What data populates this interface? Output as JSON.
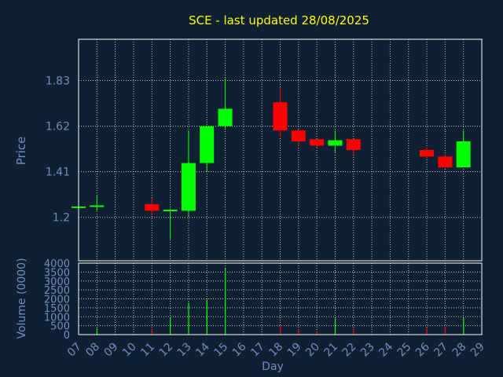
{
  "title": "SCE - last updated 28/08/2025",
  "colors": {
    "background": "#0f2033",
    "title": "#ffff00",
    "axis_text": "#6f8fbf",
    "grid": "#ffffff",
    "up": "#00ff00",
    "down": "#ff0000"
  },
  "chart_data": [
    {
      "type": "candlestick",
      "ylabel": "Price",
      "ylim": [
        1.0,
        2.02
      ],
      "yticks": [
        "1.2",
        "1.41",
        "1.62",
        "1.83"
      ],
      "ytick_values": [
        1.2,
        1.41,
        1.62,
        1.83
      ],
      "grid": true,
      "candles": [
        {
          "day": 7,
          "open": 1.25,
          "high": 1.25,
          "low": 1.25,
          "close": 1.25
        },
        {
          "day": 8,
          "open": 1.25,
          "high": 1.3,
          "low": 1.23,
          "close": 1.255
        },
        {
          "day": 11,
          "open": 1.26,
          "high": 1.29,
          "low": 1.21,
          "close": 1.23
        },
        {
          "day": 12,
          "open": 1.23,
          "high": 1.24,
          "low": 1.1,
          "close": 1.235
        },
        {
          "day": 13,
          "open": 1.23,
          "high": 1.6,
          "low": 1.2,
          "close": 1.45
        },
        {
          "day": 14,
          "open": 1.45,
          "high": 1.62,
          "low": 1.41,
          "close": 1.62
        },
        {
          "day": 15,
          "open": 1.62,
          "high": 1.84,
          "low": 1.61,
          "close": 1.7
        },
        {
          "day": 18,
          "open": 1.73,
          "high": 1.8,
          "low": 1.57,
          "close": 1.6
        },
        {
          "day": 19,
          "open": 1.6,
          "high": 1.6,
          "low": 1.53,
          "close": 1.55
        },
        {
          "day": 20,
          "open": 1.56,
          "high": 1.56,
          "low": 1.52,
          "close": 1.53
        },
        {
          "day": 21,
          "open": 1.53,
          "high": 1.6,
          "low": 1.5,
          "close": 1.555
        },
        {
          "day": 22,
          "open": 1.56,
          "high": 1.56,
          "low": 1.49,
          "close": 1.51
        },
        {
          "day": 26,
          "open": 1.51,
          "high": 1.52,
          "low": 1.47,
          "close": 1.48
        },
        {
          "day": 27,
          "open": 1.48,
          "high": 1.49,
          "low": 1.43,
          "close": 1.43
        },
        {
          "day": 28,
          "open": 1.43,
          "high": 1.6,
          "low": 1.43,
          "close": 1.55
        }
      ]
    },
    {
      "type": "bar",
      "ylabel": "Volume (0000)",
      "xlabel": "Day",
      "ylim": [
        0,
        4000
      ],
      "yticks": [
        "0",
        "500",
        "1000",
        "1500",
        "2000",
        "2500",
        "3000",
        "3500",
        "4000"
      ],
      "ytick_values": [
        0,
        500,
        1000,
        1500,
        2000,
        2500,
        3000,
        3500,
        4000
      ],
      "xticks": [
        "07",
        "08",
        "09",
        "10",
        "11",
        "12",
        "13",
        "14",
        "15",
        "16",
        "17",
        "18",
        "19",
        "20",
        "21",
        "22",
        "23",
        "24",
        "25",
        "26",
        "27",
        "28",
        "29"
      ],
      "grid": true,
      "bars": [
        {
          "day": 8,
          "value": 350,
          "direction": "up"
        },
        {
          "day": 11,
          "value": 300,
          "direction": "down"
        },
        {
          "day": 12,
          "value": 950,
          "direction": "up"
        },
        {
          "day": 13,
          "value": 1800,
          "direction": "up"
        },
        {
          "day": 14,
          "value": 1950,
          "direction": "up"
        },
        {
          "day": 15,
          "value": 3700,
          "direction": "up"
        },
        {
          "day": 18,
          "value": 500,
          "direction": "down"
        },
        {
          "day": 19,
          "value": 300,
          "direction": "down"
        },
        {
          "day": 20,
          "value": 200,
          "direction": "down"
        },
        {
          "day": 21,
          "value": 900,
          "direction": "up"
        },
        {
          "day": 22,
          "value": 350,
          "direction": "down"
        },
        {
          "day": 26,
          "value": 400,
          "direction": "down"
        },
        {
          "day": 27,
          "value": 450,
          "direction": "down"
        },
        {
          "day": 28,
          "value": 950,
          "direction": "up"
        }
      ]
    }
  ]
}
